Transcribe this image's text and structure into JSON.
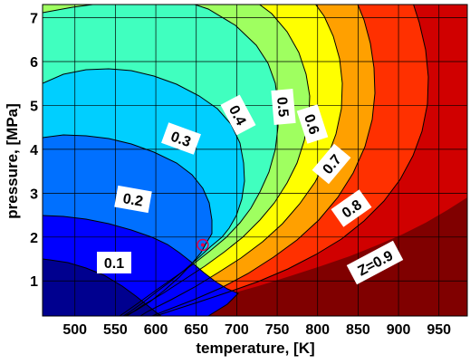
{
  "chart_data": {
    "type": "contour",
    "title": "",
    "xlabel": "temperature, [K]",
    "ylabel": "pressure, [MPa]",
    "xlim": [
      460,
      985
    ],
    "ylim": [
      0.2,
      7.3
    ],
    "xticks": [
      500,
      550,
      600,
      650,
      700,
      750,
      800,
      850,
      900,
      950
    ],
    "yticks": [
      1,
      2,
      3,
      4,
      5,
      6,
      7
    ],
    "grid": true,
    "critical_point": {
      "temperature": 658,
      "pressure": 1.82
    },
    "levels": [
      {
        "name": "0.1",
        "label": "0.1"
      },
      {
        "name": "0.2",
        "label": "0.2"
      },
      {
        "name": "0.3",
        "label": "0.3"
      },
      {
        "name": "0.4",
        "label": "0.4"
      },
      {
        "name": "0.5",
        "label": "0.5"
      },
      {
        "name": "0.6",
        "label": "0.6"
      },
      {
        "name": "0.7",
        "label": "0.7"
      },
      {
        "name": "0.8",
        "label": "0.8"
      },
      {
        "name": "0.9",
        "label": "Z=0.9"
      }
    ],
    "regions": [
      {
        "name": "Z<0.1",
        "color": "#00008f"
      },
      {
        "name": "0.1-0.2",
        "color": "#0000ff"
      },
      {
        "name": "0.2-0.3",
        "color": "#0070ff"
      },
      {
        "name": "0.3-0.4",
        "color": "#00cfff"
      },
      {
        "name": "0.4-0.5",
        "color": "#40ffbf"
      },
      {
        "name": "0.5-0.6",
        "color": "#9fff60"
      },
      {
        "name": "0.6-0.7",
        "color": "#ffff00"
      },
      {
        "name": "0.7-0.8",
        "color": "#ffa000"
      },
      {
        "name": "0.8-0.9",
        "color": "#ff3000"
      },
      {
        "name": "Z>0.9",
        "color": "#d00000"
      },
      {
        "name": "far",
        "color": "#800000"
      }
    ]
  }
}
